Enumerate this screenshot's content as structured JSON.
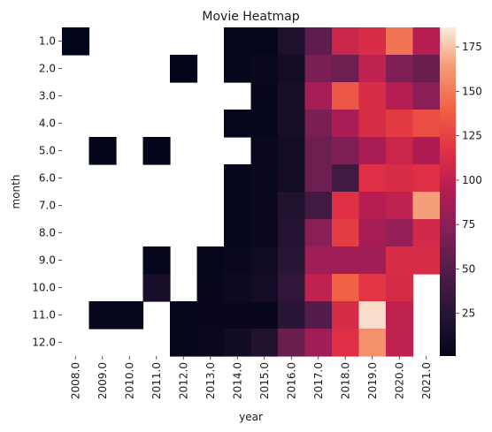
{
  "chart_data": {
    "type": "heatmap",
    "title": "Movie Heatmap",
    "xlabel": "year",
    "ylabel": "month",
    "x": [
      "2008.0",
      "2009.0",
      "2010.0",
      "2011.0",
      "2012.0",
      "2013.0",
      "2014.0",
      "2015.0",
      "2016.0",
      "2017.0",
      "2018.0",
      "2019.0",
      "2020.0",
      "2021.0"
    ],
    "y": [
      "1.0",
      "2.0",
      "3.0",
      "4.0",
      "5.0",
      "6.0",
      "7.0",
      "8.0",
      "9.0",
      "10.0",
      "11.0",
      "12.0"
    ],
    "values": [
      [
        1,
        null,
        null,
        null,
        null,
        null,
        2,
        2,
        18,
        55,
        105,
        112,
        148,
        95
      ],
      [
        null,
        null,
        null,
        null,
        1,
        null,
        3,
        5,
        12,
        68,
        62,
        100,
        70,
        60
      ],
      [
        null,
        null,
        null,
        null,
        null,
        null,
        null,
        4,
        15,
        88,
        135,
        112,
        95,
        75
      ],
      [
        null,
        null,
        null,
        null,
        null,
        null,
        2,
        3,
        14,
        68,
        90,
        112,
        120,
        130
      ],
      [
        null,
        1,
        null,
        1,
        null,
        null,
        null,
        6,
        12,
        62,
        70,
        90,
        105,
        92
      ],
      [
        null,
        null,
        null,
        null,
        null,
        null,
        3,
        5,
        12,
        62,
        40,
        115,
        112,
        115
      ],
      [
        null,
        null,
        null,
        null,
        null,
        null,
        3,
        6,
        20,
        40,
        115,
        95,
        100,
        165
      ],
      [
        null,
        null,
        null,
        null,
        null,
        null,
        3,
        5,
        22,
        75,
        122,
        88,
        80,
        108
      ],
      [
        null,
        null,
        null,
        3,
        null,
        3,
        5,
        9,
        25,
        85,
        85,
        85,
        112,
        112
      ],
      [
        null,
        null,
        null,
        15,
        null,
        4,
        8,
        12,
        30,
        100,
        140,
        118,
        110,
        null
      ],
      [
        null,
        3,
        3,
        null,
        3,
        4,
        4,
        4,
        25,
        50,
        110,
        182,
        100,
        null
      ],
      [
        null,
        null,
        null,
        null,
        3,
        5,
        10,
        20,
        60,
        85,
        115,
        160,
        100,
        null
      ]
    ],
    "colorbar": {
      "min": 1,
      "max": 186,
      "ticks": [
        25,
        50,
        75,
        100,
        125,
        150,
        175
      ]
    },
    "colormap": "rocket"
  }
}
